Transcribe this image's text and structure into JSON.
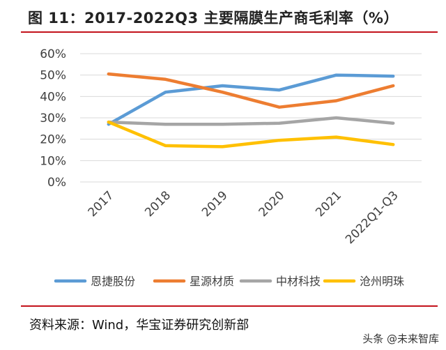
{
  "header": {
    "title": "图 11：2017-2022Q3 主要隔膜生产商毛利率（%）"
  },
  "footer": {
    "source": "资料来源：Wind，华宝证券研究创新部",
    "watermark": "头条 @未来智库"
  },
  "chart_data": {
    "type": "line",
    "categories": [
      "2017",
      "2018",
      "2019",
      "2020",
      "2021",
      "2022Q1-Q3"
    ],
    "ytick_labels": [
      "0%",
      "10%",
      "20%",
      "30%",
      "40%",
      "50%",
      "60%"
    ],
    "ylim": [
      0,
      60
    ],
    "grid": true,
    "legend_position": "bottom",
    "series": [
      {
        "name": "恩捷股份",
        "color": "#5b9bd5",
        "values": [
          27,
          42,
          45,
          43,
          50,
          49.5
        ]
      },
      {
        "name": "星源材质",
        "color": "#ed7d31",
        "values": [
          50.5,
          48,
          42,
          35,
          38,
          45
        ]
      },
      {
        "name": "中材科技",
        "color": "#a5a5a5",
        "values": [
          28,
          27,
          27,
          27.5,
          30,
          27.5
        ]
      },
      {
        "name": "沧州明珠",
        "color": "#ffc000",
        "values": [
          28,
          17,
          16.5,
          19.5,
          21,
          17.5
        ]
      }
    ]
  }
}
